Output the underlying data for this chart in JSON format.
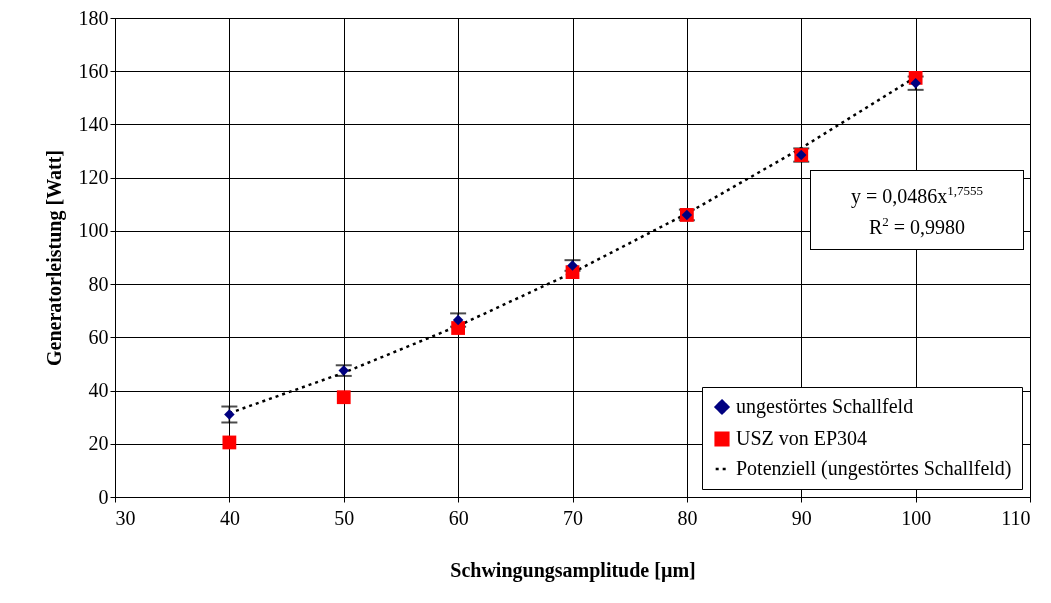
{
  "chart_data": {
    "type": "scatter",
    "xlabel": "Schwingungsamplitude [µm]",
    "ylabel": "Generatorleistung [Watt]",
    "x": [
      40,
      50,
      60,
      70,
      80,
      90,
      100
    ],
    "series": [
      {
        "name": "ungestörtes Schallfeld",
        "color": "#000080",
        "marker": "diamond",
        "values": [
          31,
          47.5,
          66.5,
          87,
          106,
          128.5,
          155.5
        ],
        "errors": [
          3,
          2,
          2.5,
          2,
          2,
          2.5,
          2.5
        ]
      },
      {
        "name": "USZ von EP304",
        "color": "#ff0000",
        "marker": "square",
        "values": [
          20.5,
          37.5,
          63.5,
          84.5,
          106,
          128.5,
          157.5
        ]
      },
      {
        "name": "Potenziell (ungestörtes Schallfeld)",
        "type": "line",
        "color": "#000000",
        "line_style": "dotted",
        "marker": "none",
        "x": [
          40,
          50,
          60,
          70,
          80,
          90,
          100
        ],
        "values": [
          31.5,
          46.7,
          64.3,
          84.3,
          106.5,
          131.1,
          157.8
        ]
      }
    ],
    "annotations": [
      "y = 0,0486x$^{1,7555}$",
      "R$^{2}$ = 0,9980"
    ],
    "xlim": [
      30,
      110
    ],
    "xticks": [
      30,
      40,
      50,
      60,
      70,
      80,
      90,
      100,
      110
    ],
    "ylim": [
      0,
      180
    ],
    "yticks": [
      0,
      20,
      40,
      60,
      80,
      100,
      120,
      140,
      160,
      180
    ],
    "grid": true,
    "legend": "bottom right"
  }
}
